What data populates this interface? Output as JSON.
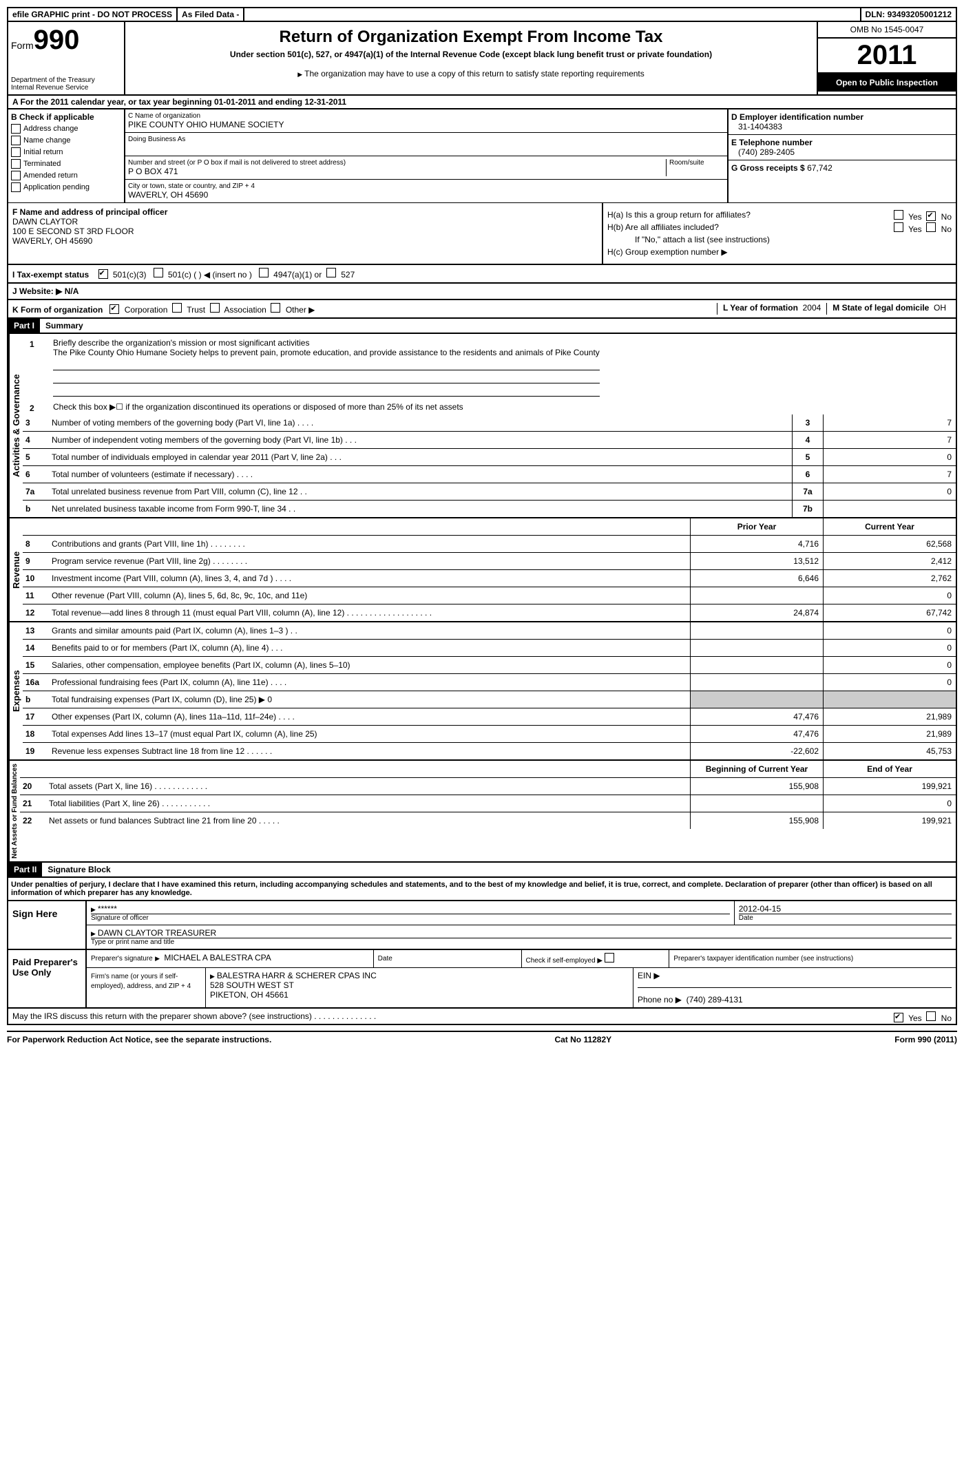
{
  "topbar": {
    "efile": "efile GRAPHIC print - DO NOT PROCESS",
    "asfiled": "As Filed Data -",
    "dln_label": "DLN:",
    "dln": "93493205001212"
  },
  "header": {
    "form_word": "Form",
    "form_num": "990",
    "dept1": "Department of the Treasury",
    "dept2": "Internal Revenue Service",
    "title": "Return of Organization Exempt From Income Tax",
    "subtitle": "Under section 501(c), 527, or 4947(a)(1) of the Internal Revenue Code (except black lung benefit trust or private foundation)",
    "note": "The organization may have to use a copy of this return to satisfy state reporting requirements",
    "omb": "OMB No 1545-0047",
    "year": "2011",
    "open": "Open to Public Inspection"
  },
  "section_a": "A For the 2011 calendar year, or tax year beginning 01-01-2011   and ending 12-31-2011",
  "col_b": {
    "title": "B Check if applicable",
    "items": [
      "Address change",
      "Name change",
      "Initial return",
      "Terminated",
      "Amended return",
      "Application pending"
    ]
  },
  "col_c": {
    "name_label": "C Name of organization",
    "name": "PIKE COUNTY OHIO HUMANE SOCIETY",
    "dba_label": "Doing Business As",
    "street_label": "Number and street (or P O  box if mail is not delivered to street address)",
    "room_label": "Room/suite",
    "street": "P O BOX 471",
    "city_label": "City or town, state or country, and ZIP + 4",
    "city": "WAVERLY, OH  45690"
  },
  "col_d": {
    "ein_label": "D Employer identification number",
    "ein": "31-1404383",
    "phone_label": "E Telephone number",
    "phone": "(740) 289-2405",
    "gross_label": "G Gross receipts $",
    "gross": "67,742"
  },
  "row_f": {
    "label": "F  Name and address of principal officer",
    "name": "DAWN CLAYTOR",
    "addr1": "100 E SECOND ST 3RD FLOOR",
    "addr2": "WAVERLY, OH  45690",
    "ha": "H(a)  Is this a group return for affiliates?",
    "hb": "H(b)  Are all affiliates included?",
    "hb_note": "If \"No,\" attach a list  (see instructions)",
    "hc": "H(c)  Group exemption number ▶",
    "yes": "Yes",
    "no": "No"
  },
  "row_i": {
    "label": "I  Tax-exempt status",
    "opt1": "501(c)(3)",
    "opt2": "501(c) (  ) ◀ (insert no )",
    "opt3": "4947(a)(1) or",
    "opt4": "527"
  },
  "row_j": "J  Website: ▶  N/A",
  "row_k": {
    "label": "K Form of organization",
    "opts": [
      "Corporation",
      "Trust",
      "Association",
      "Other ▶"
    ],
    "l_label": "L Year of formation",
    "l_val": "2004",
    "m_label": "M State of legal domicile",
    "m_val": "OH"
  },
  "part1": {
    "header": "Part I",
    "title": "Summary"
  },
  "gov": {
    "label": "Activities & Governance",
    "l1_num": "1",
    "l1": "Briefly describe the organization's mission or most significant activities",
    "l1_text": "The Pike County Ohio Humane Society helps to prevent pain, promote education, and provide assistance to the residents and animals of Pike County",
    "l2_num": "2",
    "l2": "Check this box ▶☐ if the organization discontinued its operations or disposed of more than 25% of its net assets",
    "rows": [
      {
        "num": "3",
        "desc": "Number of voting members of the governing body (Part VI, line 1a)   .    .    .    .",
        "box": "3",
        "val": "7"
      },
      {
        "num": "4",
        "desc": "Number of independent voting members of the governing body (Part VI, line 1b)   .    .    .",
        "box": "4",
        "val": "7"
      },
      {
        "num": "5",
        "desc": "Total number of individuals employed in calendar year 2011 (Part V, line 2a)   .    .    .",
        "box": "5",
        "val": "0"
      },
      {
        "num": "6",
        "desc": "Total number of volunteers (estimate if necessary)   .    .    .    .",
        "box": "6",
        "val": "7"
      },
      {
        "num": "7a",
        "desc": "Total unrelated business revenue from Part VIII, column (C), line 12   .    .",
        "box": "7a",
        "val": "0"
      },
      {
        "num": "b",
        "desc": "Net unrelated business taxable income from Form 990-T, line 34   .    .",
        "box": "7b",
        "val": ""
      }
    ]
  },
  "rev": {
    "label": "Revenue",
    "header_prior": "Prior Year",
    "header_current": "Current Year",
    "rows": [
      {
        "num": "8",
        "desc": "Contributions and grants (Part VIII, line 1h)   .    .    .    .    .    .    .    .",
        "prior": "4,716",
        "cur": "62,568"
      },
      {
        "num": "9",
        "desc": "Program service revenue (Part VIII, line 2g)   .    .    .    .    .    .    .    .",
        "prior": "13,512",
        "cur": "2,412"
      },
      {
        "num": "10",
        "desc": "Investment income (Part VIII, column (A), lines 3, 4, and 7d )   .    .    .    .",
        "prior": "6,646",
        "cur": "2,762"
      },
      {
        "num": "11",
        "desc": "Other revenue (Part VIII, column (A), lines 5, 6d, 8c, 9c, 10c, and 11e)",
        "prior": "",
        "cur": "0"
      },
      {
        "num": "12",
        "desc": "Total revenue—add lines 8 through 11 (must equal Part VIII, column (A), line 12)  .    .    .    .    .    .    .    .    .    .    .    .    .    .    .    .    .    .    .",
        "prior": "24,874",
        "cur": "67,742"
      }
    ]
  },
  "exp": {
    "label": "Expenses",
    "rows": [
      {
        "num": "13",
        "desc": "Grants and similar amounts paid (Part IX, column (A), lines 1–3 )   .    .",
        "prior": "",
        "cur": "0"
      },
      {
        "num": "14",
        "desc": "Benefits paid to or for members (Part IX, column (A), line 4)   .    .    .",
        "prior": "",
        "cur": "0"
      },
      {
        "num": "15",
        "desc": "Salaries, other compensation, employee benefits (Part IX, column (A), lines 5–10)",
        "prior": "",
        "cur": "0"
      },
      {
        "num": "16a",
        "desc": "Professional fundraising fees (Part IX, column (A), line 11e)   .    .    .    .",
        "prior": "",
        "cur": "0"
      },
      {
        "num": "b",
        "desc": "Total fundraising expenses (Part IX, column (D), line 25) ▶ 0",
        "prior": "SHADE",
        "cur": "SHADE"
      },
      {
        "num": "17",
        "desc": "Other expenses (Part IX, column (A), lines 11a–11d, 11f–24e)   .    .    .    .",
        "prior": "47,476",
        "cur": "21,989"
      },
      {
        "num": "18",
        "desc": "Total expenses  Add lines 13–17 (must equal Part IX, column (A), line 25)",
        "prior": "47,476",
        "cur": "21,989"
      },
      {
        "num": "19",
        "desc": "Revenue less expenses  Subtract line 18 from line 12   .    .    .    .    .    .",
        "prior": "-22,602",
        "cur": "45,753"
      }
    ]
  },
  "net": {
    "label": "Net Assets or Fund Balances",
    "header_prior": "Beginning of Current Year",
    "header_current": "End of Year",
    "rows": [
      {
        "num": "20",
        "desc": "Total assets (Part X, line 16)   .    .    .    .    .    .    .    .    .    .    .    .",
        "prior": "155,908",
        "cur": "199,921"
      },
      {
        "num": "21",
        "desc": "Total liabilities (Part X, line 26)   .    .    .    .    .    .    .    .    .    .    .",
        "prior": "",
        "cur": "0"
      },
      {
        "num": "22",
        "desc": "Net assets or fund balances  Subtract line 21 from line 20   .    .    .    .    .",
        "prior": "155,908",
        "cur": "199,921"
      }
    ]
  },
  "part2": {
    "header": "Part II",
    "title": "Signature Block"
  },
  "perjury": "Under penalties of perjury, I declare that I have examined this return, including accompanying schedules and statements, and to the best of my knowledge and belief, it is true, correct, and complete. Declaration of preparer (other than officer) is based on all information of which preparer has any knowledge.",
  "sign": {
    "left": "Sign Here",
    "stars": "******",
    "sig_label": "Signature of officer",
    "date_label": "Date",
    "date": "2012-04-15",
    "name": "DAWN CLAYTOR TREASURER",
    "name_label": "Type or print name and title"
  },
  "prep": {
    "left": "Paid Preparer's Use Only",
    "sig_label": "Preparer's signature",
    "prep_name": "MICHAEL A BALESTRA CPA",
    "date_label": "Date",
    "check_label": "Check if self-employed ▶",
    "ptin_label": "Preparer's taxpayer identification number (see instructions)",
    "firm_label": "Firm's name (or yours if self-employed), address, and ZIP + 4",
    "firm": "BALESTRA HARR & SCHERER CPAS INC",
    "addr": "528 SOUTH WEST ST",
    "city": "PIKETON, OH  45661",
    "ein_label": "EIN ▶",
    "phone_label": "Phone no  ▶",
    "phone": "(740) 289-4131"
  },
  "discuss": "May the IRS discuss this return with the preparer shown above? (see instructions)   .    .    .    .    .    .    .    .    .    .    .    .    .    .",
  "footer": {
    "left": "For Paperwork Reduction Act Notice, see the separate instructions.",
    "mid": "Cat No  11282Y",
    "right": "Form 990 (2011)"
  }
}
